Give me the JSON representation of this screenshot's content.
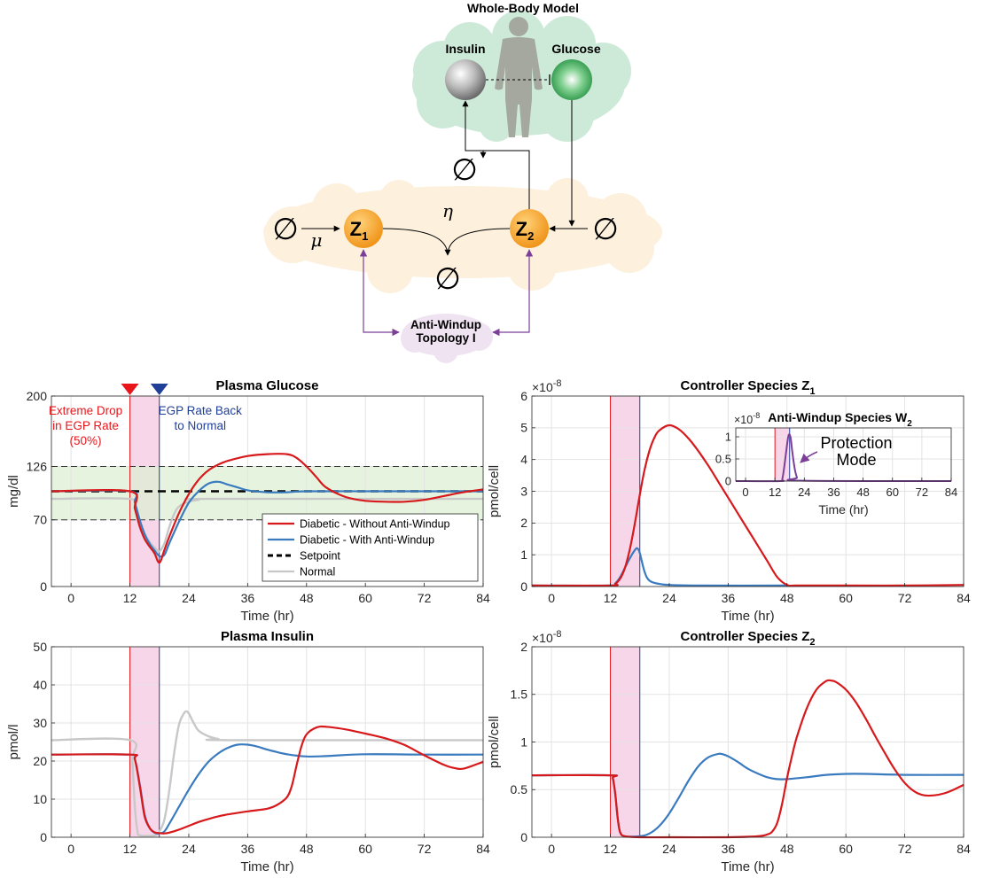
{
  "diagram": {
    "title": "Whole-Body Model",
    "insulin_label": "Insulin",
    "glucose_label": "Glucose",
    "z1_label": "Z",
    "z1_sub": "1",
    "z2_label": "Z",
    "z2_sub": "2",
    "mu_label": "μ",
    "eta_label": "η",
    "null_symbol": "∅",
    "antiwindup_line1": "Anti-Windup",
    "antiwindup_line2": "Topology I",
    "colors": {
      "body_cloud": "#cde9d8",
      "controller_cloud": "#fdf0dd",
      "antiwindup_cloud": "#efe3f1",
      "species": "#f3a01d",
      "insulin_node": "#9a9a9a",
      "glucose_node": "#2ea34a",
      "antiwindup_arrow": "#7b3f98"
    }
  },
  "chart_data": [
    {
      "id": "glucose",
      "type": "line",
      "title": "Plasma Glucose",
      "xlabel": "Time (hr)",
      "ylabel": "mg/dl",
      "xlim": [
        -4,
        84
      ],
      "ylim": [
        0,
        200
      ],
      "xticks": [
        0,
        12,
        24,
        36,
        48,
        60,
        72,
        84
      ],
      "yticks": [
        0,
        70,
        126,
        200
      ],
      "grid": true,
      "shaded_interval": [
        12,
        18
      ],
      "target_band": [
        70,
        126
      ],
      "markers": [
        {
          "x": 12,
          "color": "#e8161b",
          "lines": [
            "Extreme Drop",
            "in EGP Rate",
            "(50%)"
          ]
        },
        {
          "x": 18,
          "color": "#203f99",
          "lines": [
            "EGP Rate Back",
            "to Normal"
          ]
        }
      ],
      "legend": {
        "placement": "inside-lower-right",
        "entries": [
          {
            "label": "Diabetic - Without Anti-Windup",
            "color": "#d7191c",
            "style": "solid"
          },
          {
            "label": "Diabetic - With Anti-Windup",
            "color": "#3a7bbf",
            "style": "solid"
          },
          {
            "label": "Setpoint",
            "color": "#000000",
            "style": "dashed"
          },
          {
            "label": "Normal",
            "color": "#c8c8c8",
            "style": "solid"
          }
        ]
      },
      "series": [
        {
          "name": "Normal",
          "color": "#c8c8c8",
          "x": [
            -4,
            12,
            13,
            14,
            15,
            16,
            17,
            18,
            19,
            20,
            21,
            22,
            24,
            26,
            28,
            84
          ],
          "y": [
            92,
            92,
            82,
            68,
            56,
            47,
            41,
            37,
            45,
            62,
            76,
            84,
            89,
            91,
            92,
            92
          ]
        },
        {
          "name": "Setpoint",
          "color": "#000000",
          "dashed": true,
          "x": [
            -4,
            84
          ],
          "y": [
            100,
            100
          ]
        },
        {
          "name": "Diabetic - With Anti-Windup",
          "color": "#3a7bbf",
          "x": [
            -4,
            12,
            13,
            14,
            15,
            16,
            17,
            18,
            19,
            20,
            22,
            24,
            26,
            28,
            30,
            32,
            34,
            36,
            40,
            44,
            48,
            60,
            72,
            84
          ],
          "y": [
            100,
            100,
            88,
            70,
            55,
            45,
            38,
            32,
            33,
            45,
            68,
            88,
            100,
            108,
            110,
            107,
            104,
            101,
            99,
            99,
            100,
            100,
            100,
            100
          ]
        },
        {
          "name": "Diabetic - Without Anti-Windup",
          "color": "#d7191c",
          "x": [
            -4,
            12,
            13,
            14,
            15,
            16,
            17,
            18,
            19,
            20,
            22,
            24,
            26,
            28,
            30,
            32,
            36,
            40,
            44,
            46,
            48,
            50,
            52,
            56,
            60,
            64,
            68,
            72,
            76,
            80,
            84
          ],
          "y": [
            100,
            100,
            82,
            63,
            50,
            42,
            35,
            25,
            38,
            52,
            77,
            97,
            112,
            122,
            128,
            132,
            137,
            139,
            139,
            135,
            126,
            115,
            104,
            94,
            90,
            89,
            89,
            91,
            95,
            99,
            102
          ]
        }
      ]
    },
    {
      "id": "z1",
      "type": "line",
      "title": "Controller Species Z",
      "title_sub": "1",
      "xlabel": "Time (hr)",
      "ylabel": "pmol/cell",
      "exponent": "×10",
      "exponent_power": "-8",
      "xlim": [
        -4,
        84
      ],
      "ylim": [
        0,
        6
      ],
      "xticks": [
        0,
        12,
        24,
        36,
        48,
        60,
        72,
        84
      ],
      "yticks": [
        0,
        1,
        2,
        3,
        4,
        5,
        6
      ],
      "grid": true,
      "shaded_interval": [
        12,
        18
      ],
      "series": [
        {
          "name": "Diabetic - With Anti-Windup",
          "color": "#3a7bbf",
          "x": [
            -4,
            12,
            13,
            14,
            15,
            16,
            17,
            17.5,
            18,
            19,
            20,
            22,
            24,
            30,
            48
          ],
          "y": [
            0.03,
            0.03,
            0.1,
            0.3,
            0.6,
            0.9,
            1.15,
            1.2,
            1.05,
            0.45,
            0.18,
            0.08,
            0.05,
            0.03,
            0.03
          ]
        },
        {
          "name": "Diabetic - Without Anti-Windup",
          "color": "#d7191c",
          "x": [
            -4,
            12,
            13,
            14,
            15,
            16,
            17,
            18,
            19,
            20,
            21,
            22,
            24,
            26,
            28,
            30,
            32,
            34,
            36,
            38,
            40,
            42,
            44,
            46,
            48,
            50,
            60,
            72,
            84
          ],
          "y": [
            0.03,
            0.03,
            0.08,
            0.25,
            0.6,
            1.2,
            2.0,
            2.9,
            3.7,
            4.3,
            4.7,
            4.92,
            5.08,
            4.95,
            4.65,
            4.25,
            3.8,
            3.3,
            2.8,
            2.3,
            1.8,
            1.3,
            0.8,
            0.3,
            0.05,
            0.03,
            0.03,
            0.03,
            0.05
          ]
        }
      ],
      "inset": {
        "title": "Anti-Windup Species W",
        "title_sub": "2",
        "annotation_line1": "Protection",
        "annotation_line2": "Mode",
        "xlabel": "Time (hr)",
        "exponent": "×10",
        "exponent_power": "-8",
        "xlim": [
          -4,
          84
        ],
        "ylim": [
          0,
          1.2
        ],
        "xticks": [
          0,
          12,
          24,
          36,
          48,
          60,
          72,
          84
        ],
        "yticks": [
          0,
          0.5,
          1
        ],
        "shaded_interval": [
          12,
          18
        ],
        "series": [
          {
            "name": "W2",
            "color": "#7b3f98",
            "x": [
              -4,
              14,
              15,
              16,
              17,
              17.5,
              18,
              18.5,
              19,
              20,
              21,
              22,
              84
            ],
            "y": [
              0,
              0,
              0.05,
              0.4,
              0.85,
              1.02,
              1.05,
              0.95,
              0.7,
              0.3,
              0.08,
              0.01,
              0
            ]
          }
        ]
      }
    },
    {
      "id": "insulin",
      "type": "line",
      "title": "Plasma Insulin",
      "xlabel": "Time (hr)",
      "ylabel": "pmol/l",
      "xlim": [
        -4,
        84
      ],
      "ylim": [
        0,
        50
      ],
      "xticks": [
        0,
        12,
        24,
        36,
        48,
        60,
        72,
        84
      ],
      "yticks": [
        0,
        10,
        20,
        30,
        40,
        50
      ],
      "grid": true,
      "shaded_interval": [
        12,
        18
      ],
      "series": [
        {
          "name": "Normal",
          "color": "#c8c8c8",
          "x": [
            -4,
            12,
            12.5,
            13,
            13.5,
            14,
            17,
            18,
            19,
            20,
            21,
            22,
            23,
            23.5,
            24,
            25,
            26,
            28,
            30,
            32,
            84
          ],
          "y": [
            25.5,
            25.5,
            20,
            8,
            2,
            0.5,
            0.5,
            1.5,
            4.5,
            12,
            22,
            29.5,
            32.5,
            33,
            32.5,
            30,
            28,
            26.5,
            25.8,
            25.5,
            25.5
          ]
        },
        {
          "name": "Diabetic - With Anti-Windup",
          "color": "#3a7bbf",
          "x": [
            -4,
            12,
            13,
            14,
            15,
            16,
            17,
            18,
            19,
            20,
            22,
            24,
            26,
            28,
            30,
            32,
            34,
            36,
            38,
            40,
            44,
            48,
            52,
            60,
            72,
            84
          ],
          "y": [
            21.7,
            21.7,
            20.5,
            14,
            6,
            2.5,
            1.2,
            1.0,
            1.5,
            3.5,
            8,
            12.5,
            16.5,
            19.8,
            22,
            23.5,
            24.3,
            24.3,
            23.8,
            23,
            21.8,
            21.2,
            21.3,
            21.8,
            21.7,
            21.7
          ]
        },
        {
          "name": "Diabetic - Without Anti-Windup",
          "color": "#d7191c",
          "x": [
            -4,
            12,
            13,
            14,
            15,
            16,
            17,
            18,
            19,
            20,
            22,
            24,
            26,
            28,
            30,
            32,
            36,
            40,
            42,
            44,
            45,
            46,
            47,
            48,
            50,
            52,
            56,
            60,
            64,
            68,
            72,
            76,
            78,
            80,
            84
          ],
          "y": [
            21.7,
            21.7,
            20.5,
            13.5,
            5.5,
            2.5,
            1.3,
            1.1,
            1.0,
            1.2,
            2.0,
            3.0,
            4.0,
            4.8,
            5.5,
            6.0,
            6.8,
            7.5,
            8.5,
            10.5,
            13.5,
            19,
            24,
            27,
            28.8,
            29,
            28.3,
            27.2,
            26,
            24.2,
            21.5,
            19,
            18.2,
            18,
            19.8
          ]
        }
      ]
    },
    {
      "id": "z2",
      "type": "line",
      "title": "Controller Species Z",
      "title_sub": "2",
      "xlabel": "Time (hr)",
      "ylabel": "pmol/cell",
      "exponent": "×10",
      "exponent_power": "-8",
      "xlim": [
        -4,
        84
      ],
      "ylim": [
        0,
        2
      ],
      "xticks": [
        0,
        12,
        24,
        36,
        48,
        60,
        72,
        84
      ],
      "yticks": [
        0,
        0.5,
        1,
        1.5,
        2
      ],
      "grid": true,
      "shaded_interval": [
        12,
        18
      ],
      "series": [
        {
          "name": "Diabetic - With Anti-Windup",
          "color": "#3a7bbf",
          "x": [
            -4,
            12,
            12.5,
            13,
            13.5,
            14,
            15,
            18,
            20,
            22,
            24,
            26,
            28,
            30,
            32,
            34,
            35,
            36,
            38,
            40,
            42,
            44,
            46,
            48,
            52,
            56,
            60,
            64,
            72,
            84
          ],
          "y": [
            0.65,
            0.65,
            0.62,
            0.45,
            0.2,
            0.05,
            0.01,
            0.01,
            0.04,
            0.12,
            0.25,
            0.42,
            0.6,
            0.75,
            0.84,
            0.875,
            0.87,
            0.85,
            0.79,
            0.72,
            0.67,
            0.63,
            0.61,
            0.61,
            0.63,
            0.655,
            0.665,
            0.665,
            0.655,
            0.655
          ]
        },
        {
          "name": "Diabetic - Without Anti-Windup",
          "color": "#d7191c",
          "x": [
            -4,
            12,
            12.5,
            13,
            13.5,
            14,
            15,
            18,
            24,
            36,
            42,
            44,
            45,
            46,
            47,
            48,
            49,
            50,
            52,
            54,
            56,
            57,
            58,
            60,
            62,
            64,
            66,
            68,
            70,
            72,
            74,
            76,
            78,
            80,
            82,
            84
          ],
          "y": [
            0.65,
            0.65,
            0.62,
            0.45,
            0.2,
            0.05,
            0.01,
            0.0,
            0.0,
            0.0,
            0.01,
            0.03,
            0.06,
            0.15,
            0.35,
            0.62,
            0.85,
            1.05,
            1.35,
            1.55,
            1.64,
            1.645,
            1.63,
            1.55,
            1.42,
            1.25,
            1.06,
            0.88,
            0.71,
            0.57,
            0.48,
            0.44,
            0.44,
            0.46,
            0.5,
            0.55
          ]
        }
      ]
    }
  ]
}
